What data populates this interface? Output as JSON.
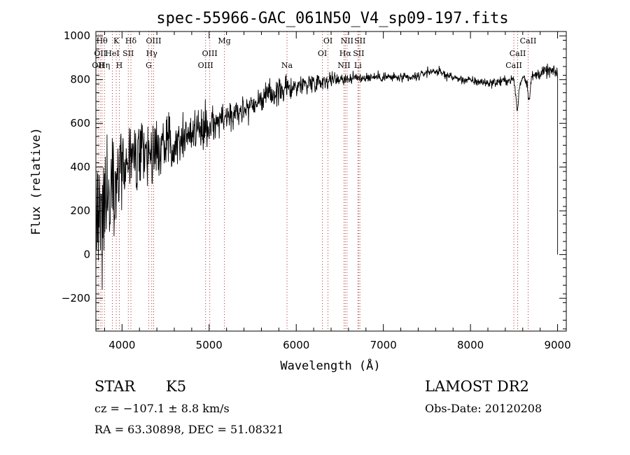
{
  "chart_data": {
    "type": "line",
    "title": "spec-55966-GAC_061N50_V4_sp09-197.fits",
    "xlabel": "Wavelength (Å)",
    "ylabel": "Flux (relative)",
    "xlim": [
      3700,
      9100
    ],
    "ylim": [
      -350,
      1020
    ],
    "x_ticks": [
      4000,
      5000,
      6000,
      7000,
      8000,
      9000
    ],
    "y_ticks": [
      -200,
      0,
      200,
      400,
      600,
      800,
      1000
    ],
    "x_tick_labels": [
      "4000",
      "5000",
      "6000",
      "7000",
      "8000",
      "9000"
    ],
    "y_tick_labels": [
      "−200",
      "0",
      "200",
      "400",
      "600",
      "800",
      "1000"
    ],
    "grid": false,
    "series": [
      {
        "noise_profile": [
          [
            3700,
            260
          ],
          [
            3900,
            170
          ],
          [
            4200,
            110
          ],
          [
            4600,
            75
          ],
          [
            5200,
            55
          ],
          [
            5600,
            45
          ],
          [
            6200,
            30
          ],
          [
            6700,
            18
          ],
          [
            7500,
            14
          ],
          [
            8500,
            16
          ],
          [
            9000,
            22
          ]
        ],
        "x": [
          3700,
          3750,
          3800,
          3850,
          3900,
          3950,
          4000,
          4100,
          4200,
          4300,
          4400,
          4500,
          4600,
          4700,
          4800,
          4900,
          5000,
          5100,
          5200,
          5300,
          5400,
          5500,
          5600,
          5700,
          5800,
          5900,
          6000,
          6100,
          6200,
          6300,
          6400,
          6500,
          6600,
          6700,
          6800,
          6900,
          7000,
          7100,
          7200,
          7300,
          7400,
          7500,
          7600,
          7700,
          7800,
          7900,
          8000,
          8100,
          8200,
          8300,
          8400,
          8500,
          8540,
          8560,
          8600,
          8650,
          8670,
          8700,
          8800,
          8900,
          9000
        ],
        "y": [
          150,
          200,
          250,
          300,
          350,
          380,
          400,
          420,
          440,
          460,
          480,
          500,
          520,
          540,
          560,
          580,
          590,
          610,
          630,
          650,
          670,
          690,
          710,
          730,
          745,
          760,
          770,
          780,
          790,
          795,
          800,
          805,
          805,
          808,
          810,
          812,
          812,
          810,
          808,
          805,
          815,
          835,
          840,
          825,
          810,
          800,
          795,
          790,
          785,
          788,
          795,
          800,
          650,
          760,
          820,
          790,
          700,
          810,
          830,
          840,
          830
        ]
      }
    ],
    "lines": [
      {
        "wl": 3726,
        "label": "OII",
        "row": 2
      },
      {
        "wl": 3750,
        "label": "OII",
        "row": 1
      },
      {
        "wl": 3770,
        "label": "Hθ",
        "row": 0
      },
      {
        "wl": 3798,
        "label": "Hη",
        "row": 2
      },
      {
        "wl": 3889,
        "label": "HeI",
        "row": 1
      },
      {
        "wl": 3934,
        "label": "K",
        "row": 0
      },
      {
        "wl": 3969,
        "label": "H",
        "row": 2
      },
      {
        "wl": 4072,
        "label": "SII",
        "row": 1
      },
      {
        "wl": 4102,
        "label": "Hδ",
        "row": 0
      },
      {
        "wl": 4307,
        "label": "G",
        "row": 2
      },
      {
        "wl": 4341,
        "label": "Hγ",
        "row": 1
      },
      {
        "wl": 4363,
        "label": "OIII",
        "row": 0
      },
      {
        "wl": 4959,
        "label": "OIII",
        "row": 2
      },
      {
        "wl": 5007,
        "label": "OIII",
        "row": 1
      },
      {
        "wl": 5175,
        "label": "Mg",
        "row": 0
      },
      {
        "wl": 5894,
        "label": "Na",
        "row": 2
      },
      {
        "wl": 6300,
        "label": "OI",
        "row": 1
      },
      {
        "wl": 6364,
        "label": "OI",
        "row": 0
      },
      {
        "wl": 6548,
        "label": "NII",
        "row": 2
      },
      {
        "wl": 6563,
        "label": "Hα",
        "row": 1
      },
      {
        "wl": 6583,
        "label": "NII",
        "row": 0
      },
      {
        "wl": 6708,
        "label": "Li",
        "row": 2
      },
      {
        "wl": 6716,
        "label": "SII",
        "row": 1
      },
      {
        "wl": 6731,
        "label": "SII",
        "row": 0
      },
      {
        "wl": 8498,
        "label": "CaII",
        "row": 2
      },
      {
        "wl": 8542,
        "label": "CaII",
        "row": 1
      },
      {
        "wl": 8662,
        "label": "CaII",
        "row": 0
      }
    ]
  },
  "info": {
    "obj_class": "STAR",
    "subclass": "K5",
    "survey": "LAMOST DR2",
    "velocity": "cz = −107.1 ± 8.8 km/s",
    "obs_date": "Obs-Date: 20120208",
    "coords": "RA =  63.30898, DEC =  51.08321"
  }
}
